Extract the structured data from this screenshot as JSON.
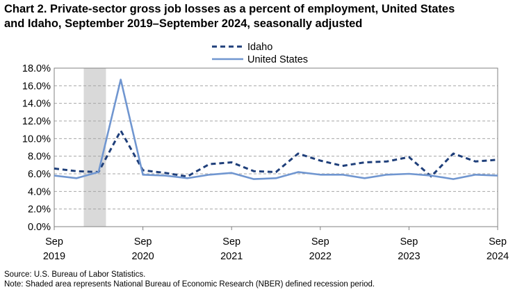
{
  "title_line1": "Chart 2. Private-sector gross job losses as a percent of employment, United States",
  "title_line2": "and Idaho, September 2019–September 2024, seasonally adjusted",
  "source": "Source: U.S. Bureau of Labor Statistics.",
  "note": "Note: Shaded area represents National Bureau of Economic Research (NBER) defined  recession period.",
  "chart_data": {
    "type": "line",
    "title": "Chart 2. Private-sector gross job losses as a percent of employment, United States and Idaho, September 2019–September 2024, seasonally adjusted",
    "xlabel": "",
    "ylabel": "",
    "ylim": [
      0,
      18
    ],
    "y_ticks": [
      "0.0%",
      "2.0%",
      "4.0%",
      "6.0%",
      "8.0%",
      "10.0%",
      "12.0%",
      "14.0%",
      "16.0%",
      "18.0%"
    ],
    "x_ticks": [
      {
        "month": "Sep",
        "year": "2019"
      },
      {
        "month": "Sep",
        "year": "2020"
      },
      {
        "month": "Sep",
        "year": "2021"
      },
      {
        "month": "Sep",
        "year": "2022"
      },
      {
        "month": "Sep",
        "year": "2023"
      },
      {
        "month": "Sep",
        "year": "2024"
      }
    ],
    "x": [
      "2019-09",
      "2019-12",
      "2020-03",
      "2020-06",
      "2020-09",
      "2020-12",
      "2021-03",
      "2021-06",
      "2021-09",
      "2021-12",
      "2022-03",
      "2022-06",
      "2022-09",
      "2022-12",
      "2023-03",
      "2023-06",
      "2023-09",
      "2023-12",
      "2024-03",
      "2024-06",
      "2024-09"
    ],
    "recession_period": [
      "2020-01",
      "2020-04"
    ],
    "grid": true,
    "legend_position": "top-center",
    "series": [
      {
        "name": "Idaho",
        "style": "dashed",
        "color": "#1f3f7a",
        "values": [
          6.6,
          6.3,
          6.2,
          10.9,
          6.4,
          6.1,
          5.7,
          7.1,
          7.3,
          6.3,
          6.2,
          8.3,
          7.5,
          6.9,
          7.3,
          7.4,
          7.9,
          5.7,
          8.3,
          7.4,
          7.6
        ]
      },
      {
        "name": "United States",
        "style": "solid",
        "color": "#7096d0",
        "values": [
          5.8,
          5.5,
          6.2,
          16.7,
          5.9,
          5.8,
          5.5,
          5.9,
          6.1,
          5.4,
          5.5,
          6.2,
          5.9,
          5.9,
          5.5,
          5.9,
          6.0,
          5.8,
          5.4,
          5.9,
          5.8
        ]
      }
    ]
  }
}
